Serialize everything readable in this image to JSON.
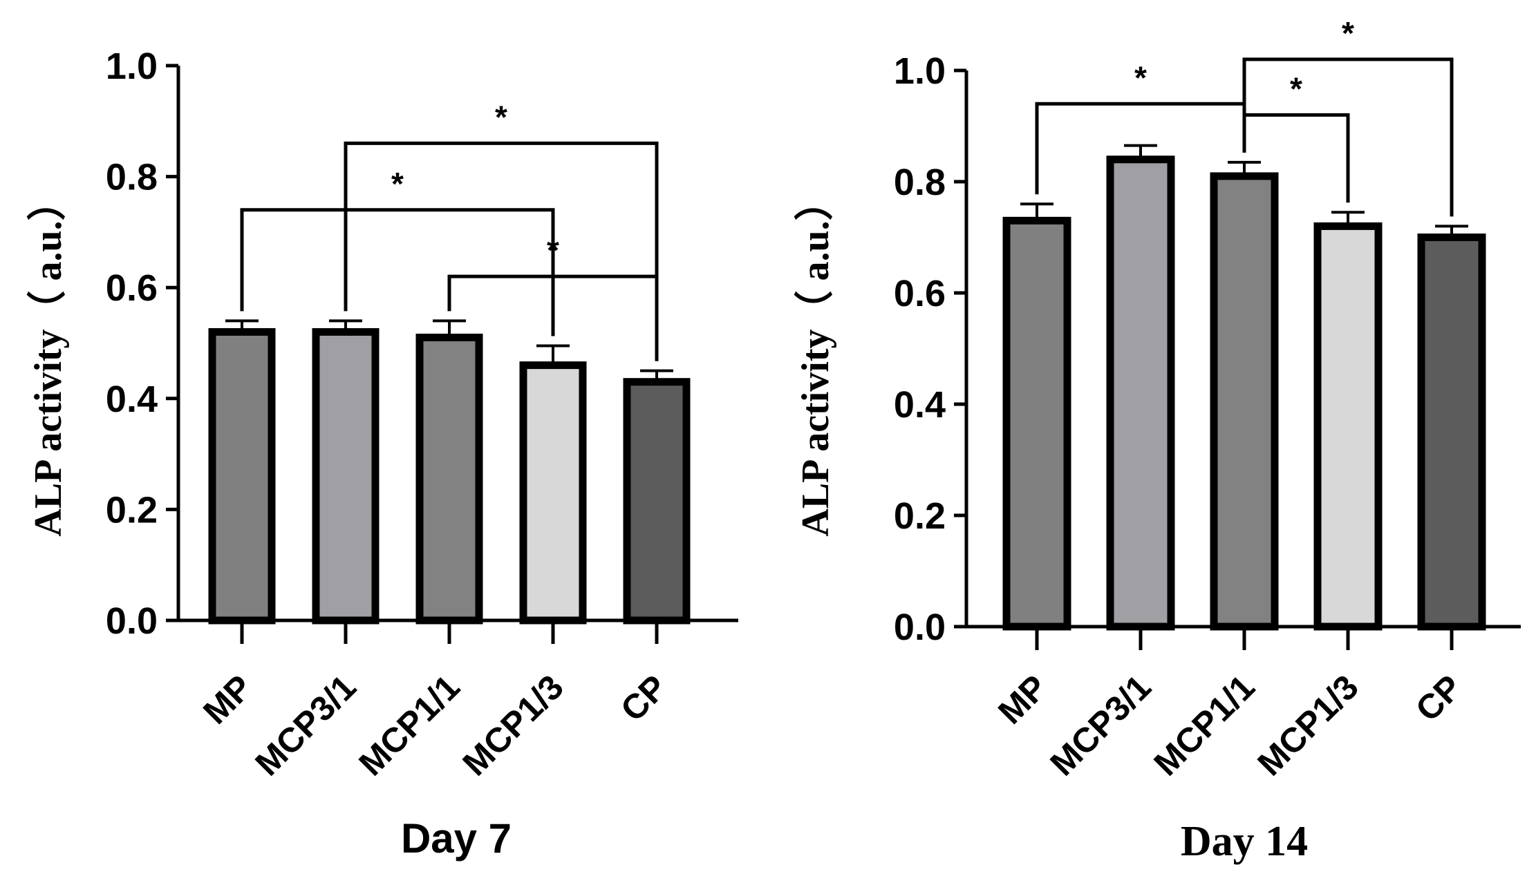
{
  "chart_data": [
    {
      "type": "bar",
      "title": "",
      "xlabel": "Day 7",
      "ylabel": "ALP activity（ a.u.）",
      "ylim": [
        0,
        1.0
      ],
      "yticks": [
        "0.0",
        "0.2",
        "0.4",
        "0.6",
        "0.8",
        "1.0"
      ],
      "grid": false,
      "categories": [
        "MP",
        "MCP3/1",
        "MCP1/1",
        "MCP1/3",
        "CP"
      ],
      "values": [
        0.52,
        0.52,
        0.51,
        0.46,
        0.43
      ],
      "errors": [
        0.02,
        0.02,
        0.03,
        0.035,
        0.02
      ],
      "colors": [
        "#808080",
        "#a0a0a4",
        "#828282",
        "#d8d8d8",
        "#5c5c5c"
      ],
      "significance": [
        {
          "from": 1,
          "to": 4,
          "y": 0.86,
          "label": "*"
        },
        {
          "from": 0,
          "to": 3,
          "y": 0.74,
          "label": "*"
        },
        {
          "from": 2,
          "to": 4,
          "y": 0.62,
          "label": "*"
        }
      ]
    },
    {
      "type": "bar",
      "title": "",
      "xlabel": "Day 14",
      "ylabel": "ALP activity（ a.u.）",
      "ylim": [
        0,
        1.0
      ],
      "yticks": [
        "0.0",
        "0.2",
        "0.4",
        "0.6",
        "0.8",
        "1.0"
      ],
      "grid": false,
      "categories": [
        "MP",
        "MCP3/1",
        "MCP1/1",
        "MCP1/3",
        "CP"
      ],
      "values": [
        0.73,
        0.84,
        0.81,
        0.72,
        0.7
      ],
      "errors": [
        0.03,
        0.025,
        0.025,
        0.025,
        0.02
      ],
      "colors": [
        "#808080",
        "#a0a0a4",
        "#828282",
        "#d8d8d8",
        "#5c5c5c"
      ],
      "significance": [
        {
          "from": 0,
          "to": 2,
          "y": 0.94,
          "label": "*"
        },
        {
          "from": 2,
          "to": 3,
          "y": 0.92,
          "label": "*"
        },
        {
          "from": 2,
          "to": 4,
          "y": 1.02,
          "label": "*"
        }
      ]
    }
  ]
}
